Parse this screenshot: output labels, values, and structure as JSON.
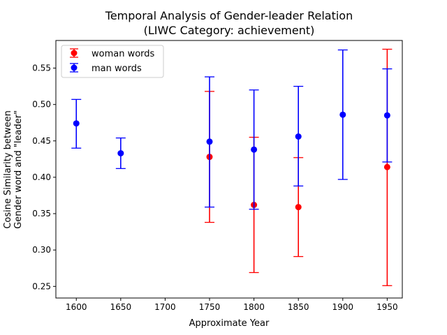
{
  "chart_data": {
    "type": "scatter",
    "title_line1": "Temporal Analysis of Gender-leader Relation",
    "title_line2": "(LIWC Category: achievement)",
    "xlabel": "Approximate Year",
    "ylabel_line1": "Cosine Similarity between",
    "ylabel_line2": "Gender word and \"leader\"",
    "xlim": [
      1577,
      1967
    ],
    "ylim": [
      0.234,
      0.588
    ],
    "x_ticks": [
      1600,
      1650,
      1700,
      1750,
      1800,
      1850,
      1900,
      1950
    ],
    "y_ticks": [
      0.25,
      0.3,
      0.35,
      0.4,
      0.45,
      0.5,
      0.55
    ],
    "legend_position": "upper left",
    "series": [
      {
        "name": "woman words",
        "color": "#ff0000",
        "points": [
          {
            "x": 1750,
            "y": 0.428,
            "low": 0.338,
            "high": 0.518
          },
          {
            "x": 1800,
            "y": 0.362,
            "low": 0.269,
            "high": 0.455
          },
          {
            "x": 1850,
            "y": 0.359,
            "low": 0.291,
            "high": 0.427
          },
          {
            "x": 1950,
            "y": 0.414,
            "low": 0.251,
            "high": 0.576
          }
        ]
      },
      {
        "name": "man words",
        "color": "#0000ff",
        "points": [
          {
            "x": 1600,
            "y": 0.474,
            "low": 0.44,
            "high": 0.507
          },
          {
            "x": 1650,
            "y": 0.433,
            "low": 0.412,
            "high": 0.454
          },
          {
            "x": 1750,
            "y": 0.449,
            "low": 0.359,
            "high": 0.538
          },
          {
            "x": 1800,
            "y": 0.438,
            "low": 0.356,
            "high": 0.52
          },
          {
            "x": 1850,
            "y": 0.456,
            "low": 0.388,
            "high": 0.525
          },
          {
            "x": 1900,
            "y": 0.486,
            "low": 0.397,
            "high": 0.575
          },
          {
            "x": 1950,
            "y": 0.485,
            "low": 0.421,
            "high": 0.549
          }
        ]
      }
    ]
  }
}
